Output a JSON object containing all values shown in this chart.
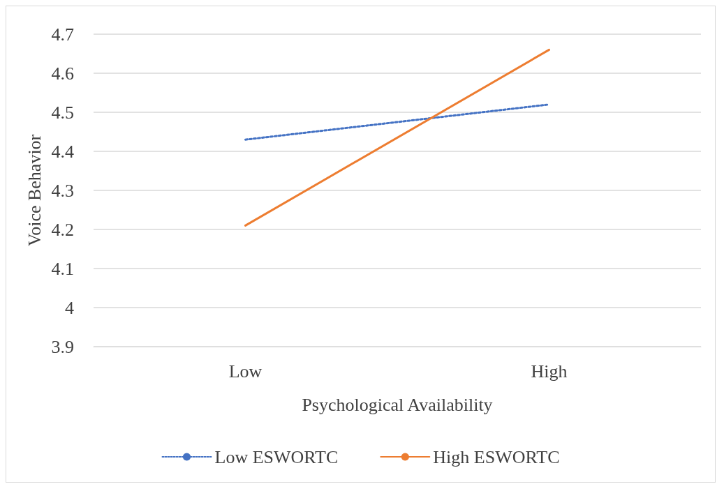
{
  "chart_data": {
    "type": "line",
    "xlabel": "Psychological Availability",
    "ylabel": "Voice Behavior",
    "categories": [
      "Low",
      "High"
    ],
    "series": [
      {
        "name": "Low ESWORTC",
        "color": "#4472c4",
        "values": [
          4.43,
          4.52
        ],
        "line_style": "dotted"
      },
      {
        "name": "High ESWORTC",
        "color": "#ed7d31",
        "values": [
          4.21,
          4.66
        ],
        "line_style": "solid"
      }
    ],
    "ylim": [
      3.9,
      4.7
    ],
    "yticks": [
      3.9,
      4,
      4.1,
      4.2,
      4.3,
      4.4,
      4.5,
      4.6,
      4.7
    ],
    "grid": "y",
    "legend": "bottom",
    "marker": "none"
  }
}
